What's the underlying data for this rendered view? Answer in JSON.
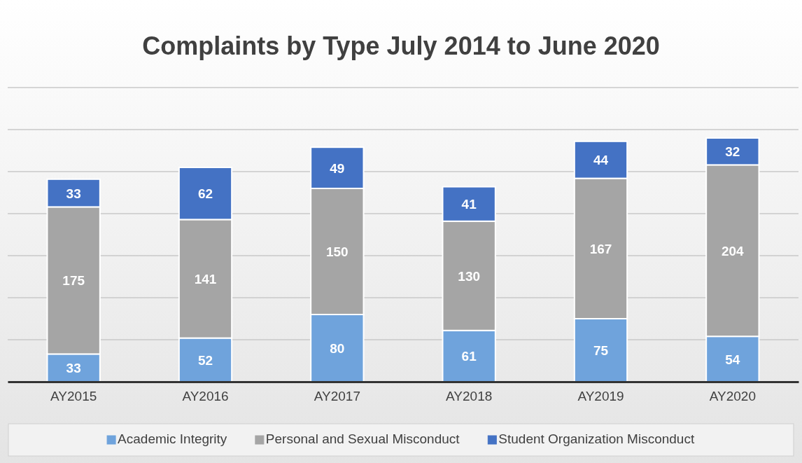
{
  "chart_data": {
    "type": "bar",
    "title": "Complaints by Type July 2014 to June 2020",
    "stacked": true,
    "data_labels": true,
    "grid": "y",
    "legend": "bottom",
    "tick_labels": "x",
    "categories": [
      "AY2015",
      "AY2016",
      "AY2017",
      "AY2018",
      "AY2019",
      "AY2020"
    ],
    "ylim": [
      0,
      350
    ],
    "yticks": [
      {
        "value": 0,
        "label": null
      },
      {
        "value": 50,
        "label": null
      },
      {
        "value": 100,
        "label": null
      },
      {
        "value": 150,
        "label": null
      },
      {
        "value": 200,
        "label": null
      },
      {
        "value": 250,
        "label": null
      },
      {
        "value": 300,
        "label": null
      },
      {
        "value": 350,
        "label": null
      }
    ],
    "series": [
      {
        "name": "Academic Integrity",
        "color": "#6fa3dc",
        "values": [
          33,
          52,
          80,
          61,
          75,
          54
        ]
      },
      {
        "name": "Personal and Sexual Misconduct",
        "color": "#a5a5a5",
        "values": [
          175,
          141,
          150,
          130,
          167,
          204
        ]
      },
      {
        "name": "Student Organization Misconduct",
        "color": "#4472c4",
        "values": [
          33,
          62,
          49,
          41,
          44,
          32
        ]
      }
    ]
  }
}
